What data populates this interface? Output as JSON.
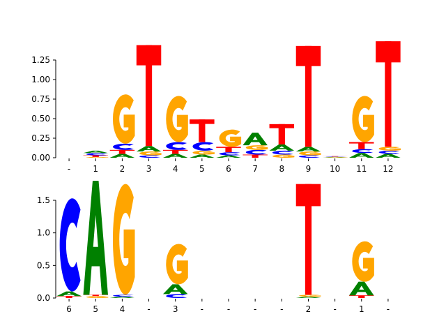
{
  "chart_data": [
    {
      "type": "sequence-logo",
      "ylim": [
        0,
        1.5
      ],
      "yticks": [
        0.0,
        0.25,
        0.5,
        0.75,
        1.0,
        1.25
      ],
      "ytick_labels": [
        "0.00",
        "0.25",
        "0.50",
        "0.75",
        "1.00",
        "1.25"
      ],
      "xtick_labels": [
        "-",
        "1",
        "2",
        "3",
        "4",
        "5",
        "6",
        "7",
        "8",
        "9",
        "10",
        "11",
        "12"
      ],
      "positions": [
        [],
        [
          [
            "G",
            0.01
          ],
          [
            "T",
            0.02
          ],
          [
            "C",
            0.03
          ],
          [
            "A",
            0.03
          ]
        ],
        [
          [
            "A",
            0.05
          ],
          [
            "T",
            0.05
          ],
          [
            "C",
            0.08
          ],
          [
            "G",
            0.63
          ]
        ],
        [
          [
            "C",
            0.03
          ],
          [
            "G",
            0.05
          ],
          [
            "A",
            0.07
          ],
          [
            "T",
            1.29
          ]
        ],
        [
          [
            "A",
            0.05
          ],
          [
            "T",
            0.05
          ],
          [
            "C",
            0.1
          ],
          [
            "G",
            0.59
          ]
        ],
        [
          [
            "A",
            0.04
          ],
          [
            "G",
            0.05
          ],
          [
            "C",
            0.11
          ],
          [
            "T",
            0.29
          ]
        ],
        [
          [
            "A",
            0.03
          ],
          [
            "C",
            0.04
          ],
          [
            "T",
            0.07
          ],
          [
            "G",
            0.22
          ]
        ],
        [
          [
            "T",
            0.04
          ],
          [
            "C",
            0.06
          ],
          [
            "G",
            0.06
          ],
          [
            "A",
            0.16
          ]
        ],
        [
          [
            "G",
            0.04
          ],
          [
            "C",
            0.05
          ],
          [
            "A",
            0.08
          ],
          [
            "T",
            0.26
          ]
        ],
        [
          [
            "C",
            0.03
          ],
          [
            "G",
            0.05
          ],
          [
            "A",
            0.06
          ],
          [
            "T",
            1.29
          ]
        ],
        [
          [
            "G",
            0.005
          ],
          [
            "A",
            0.005
          ],
          [
            "C",
            0.005
          ],
          [
            "T",
            0.005
          ]
        ],
        [
          [
            "A",
            0.06
          ],
          [
            "C",
            0.05
          ],
          [
            "T",
            0.09
          ],
          [
            "G",
            0.59
          ]
        ],
        [
          [
            "A",
            0.05
          ],
          [
            "C",
            0.04
          ],
          [
            "G",
            0.05
          ],
          [
            "T",
            1.35
          ]
        ]
      ]
    },
    {
      "type": "sequence-logo",
      "ylim": [
        0,
        1.8
      ],
      "yticks": [
        0.0,
        0.5,
        1.0,
        1.5
      ],
      "ytick_labels": [
        "0.0",
        "0.5",
        "1.0",
        "1.5"
      ],
      "xtick_labels": [
        "6",
        "5",
        "4",
        "-",
        "3",
        "-",
        "-",
        "-",
        "-",
        "2",
        "-",
        "1",
        "-"
      ],
      "positions": [
        [
          [
            "T",
            0.03
          ],
          [
            "A",
            0.07
          ],
          [
            "C",
            1.43
          ]
        ],
        [
          [
            "G",
            0.03
          ],
          [
            "T",
            0.02
          ],
          [
            "A",
            1.75
          ]
        ],
        [
          [
            "A",
            0.02
          ],
          [
            "C",
            0.03
          ],
          [
            "G",
            1.7
          ]
        ],
        [],
        [
          [
            "C",
            0.06
          ],
          [
            "A",
            0.15
          ],
          [
            "G",
            0.62
          ]
        ],
        [],
        [],
        [],
        [],
        [
          [
            "A",
            0.02
          ],
          [
            "G",
            0.03
          ],
          [
            "T",
            1.7
          ]
        ],
        [],
        [
          [
            "T",
            0.04
          ],
          [
            "A",
            0.21
          ],
          [
            "G",
            0.62
          ]
        ],
        []
      ]
    }
  ],
  "colors": {
    "A": "#008000",
    "C": "#0000ff",
    "G": "#ffa500",
    "T": "#ff0000"
  }
}
